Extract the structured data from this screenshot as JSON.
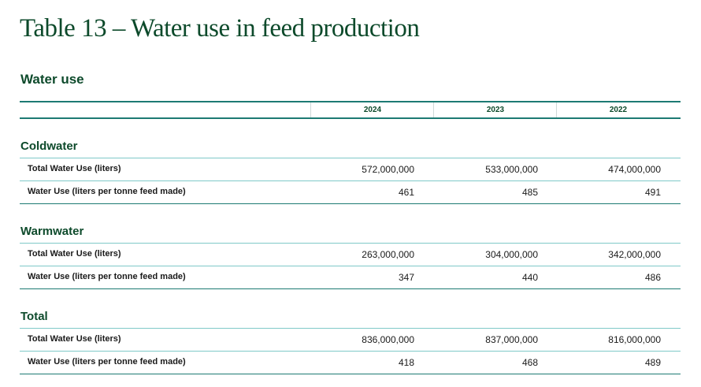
{
  "title": "Table 13 – Water use in feed production",
  "section": "Water use",
  "years": [
    "2024",
    "2023",
    "2022"
  ],
  "groups": [
    {
      "name": "Coldwater",
      "rows": [
        {
          "label": "Total Water Use (liters)",
          "values": [
            "572,000,000",
            "533,000,000",
            "474,000,000"
          ]
        },
        {
          "label": "Water Use (liters per tonne feed made)",
          "values": [
            "461",
            "485",
            "491"
          ]
        }
      ]
    },
    {
      "name": "Warmwater",
      "rows": [
        {
          "label": "Total Water Use (liters)",
          "values": [
            "263,000,000",
            "304,000,000",
            "342,000,000"
          ]
        },
        {
          "label": "Water Use (liters per tonne feed made)",
          "values": [
            "347",
            "440",
            "486"
          ]
        }
      ]
    },
    {
      "name": "Total",
      "rows": [
        {
          "label": "Total Water Use (liters)",
          "values": [
            "836,000,000",
            "837,000,000",
            "816,000,000"
          ]
        },
        {
          "label": "Water Use (liters per tonne feed made)",
          "values": [
            "418",
            "468",
            "489"
          ]
        }
      ]
    }
  ]
}
